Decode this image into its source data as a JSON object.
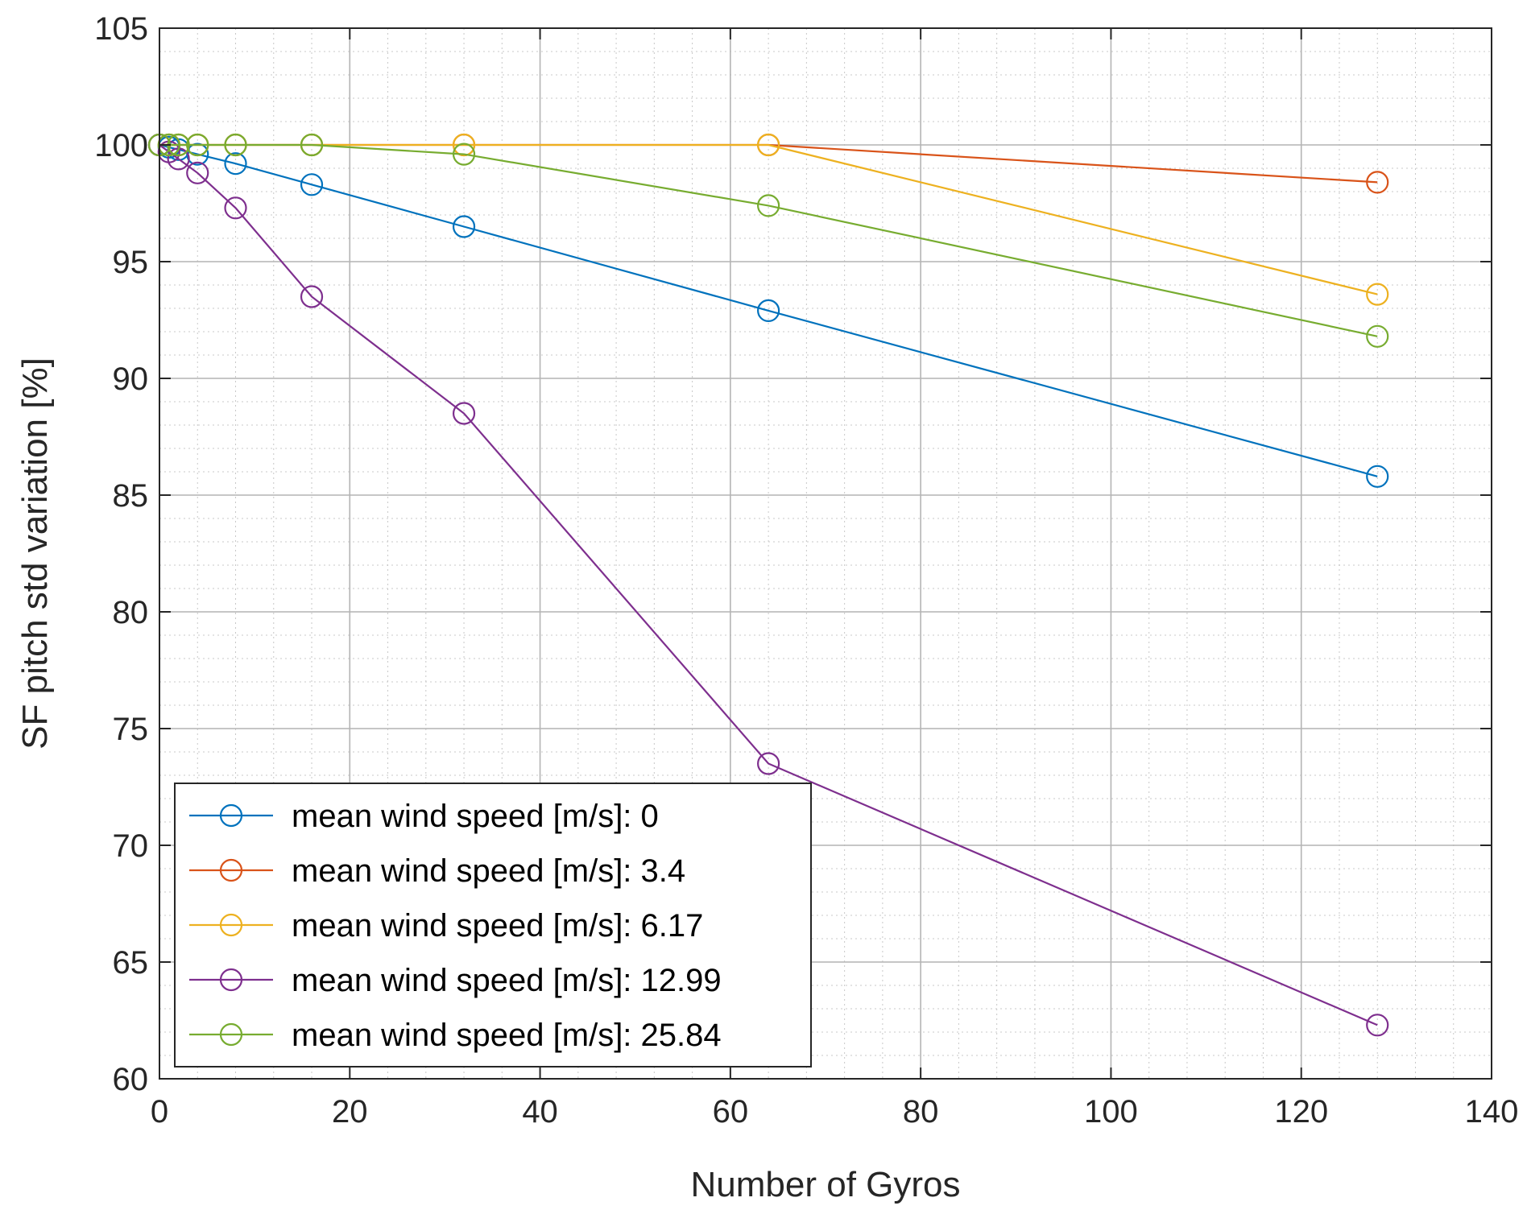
{
  "chart_data": {
    "type": "line",
    "title": "",
    "xlabel": "Number of Gyros",
    "ylabel": "SF pitch std variation [%]",
    "xlim": [
      0,
      140
    ],
    "ylim": [
      60,
      105
    ],
    "xticks": [
      0,
      20,
      40,
      60,
      80,
      100,
      120,
      140
    ],
    "yticks": [
      60,
      65,
      70,
      75,
      80,
      85,
      90,
      95,
      100,
      105
    ],
    "grid": true,
    "minor_grid": true,
    "legend_position": "bottom-left",
    "x": [
      0,
      1,
      2,
      4,
      8,
      16,
      32,
      64,
      128
    ],
    "series": [
      {
        "name": "mean wind speed [m/s]: 0",
        "color": "#0072BD",
        "values": [
          100,
          99.9,
          99.8,
          99.6,
          99.2,
          98.3,
          96.5,
          92.9,
          85.8
        ]
      },
      {
        "name": "mean wind speed [m/s]: 3.4",
        "color": "#D95319",
        "values": [
          100,
          100,
          100,
          100,
          100,
          100,
          100,
          100,
          98.4
        ]
      },
      {
        "name": "mean wind speed [m/s]: 6.17",
        "color": "#EDB120",
        "values": [
          100,
          100,
          100,
          100,
          100,
          100,
          100,
          100,
          93.6
        ]
      },
      {
        "name": "mean wind speed [m/s]: 12.99",
        "color": "#7E2F8E",
        "values": [
          100,
          99.7,
          99.4,
          98.8,
          97.3,
          93.5,
          88.5,
          73.5,
          62.3
        ]
      },
      {
        "name": "mean wind speed [m/s]: 25.84",
        "color": "#77AC30",
        "values": [
          100,
          100,
          100,
          100,
          100,
          100,
          99.6,
          97.4,
          91.8
        ]
      }
    ]
  }
}
